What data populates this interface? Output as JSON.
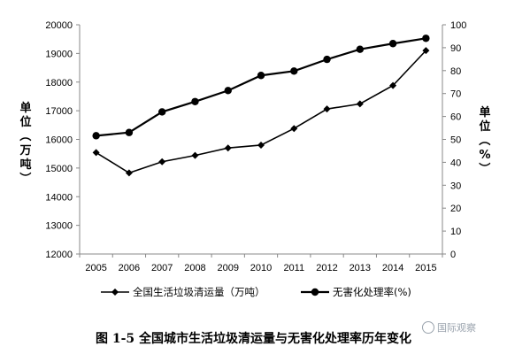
{
  "chart_data": {
    "type": "line",
    "categories": [
      "2005",
      "2006",
      "2007",
      "2008",
      "2009",
      "2010",
      "2011",
      "2012",
      "2013",
      "2014",
      "2015"
    ],
    "series": [
      {
        "name": "全国生活垃圾清运量（万吨）",
        "axis": "left",
        "marker": "diamond",
        "values": [
          15540,
          14830,
          15220,
          15440,
          15700,
          15800,
          16380,
          17060,
          17240,
          17880,
          19100
        ]
      },
      {
        "name": "无害化处理率(%)",
        "axis": "right",
        "marker": "circle",
        "values": [
          51.6,
          53,
          62,
          66.5,
          71.3,
          77.9,
          79.8,
          84.9,
          89.3,
          91.8,
          94.1
        ]
      }
    ],
    "y_left": {
      "label": "单位（万吨）",
      "min": 12000,
      "max": 20000,
      "ticks": [
        12000,
        13000,
        14000,
        15000,
        16000,
        17000,
        18000,
        19000,
        20000
      ]
    },
    "y_right": {
      "label": "单位（%）",
      "min": 0,
      "max": 100,
      "ticks": [
        0,
        10,
        20,
        30,
        40,
        50,
        60,
        70,
        80,
        90,
        100
      ]
    },
    "grid": false,
    "legend_position": "bottom"
  },
  "caption": "图 1-5 全国城市生活垃圾清运量与无害化处理率历年变化",
  "watermark": "国际观察"
}
